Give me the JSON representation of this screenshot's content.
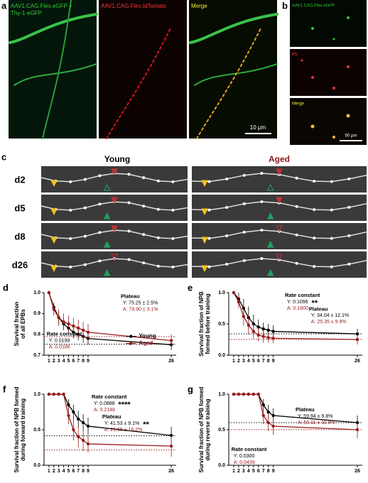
{
  "panel_a": {
    "label": "a",
    "green_label": [
      "AAV1.CAG.Flex.eGFP +",
      "Thy-1-eGFP"
    ],
    "red_label": "AAV1.CAG.Flex.tdTomato",
    "merge_label": "Merge",
    "scale_bar": "10 μm"
  },
  "panel_b": {
    "label": "b",
    "green_label": "AAV1.CAG.Flex.eGFP",
    "red_label": "PV",
    "merge_label": "Merge",
    "scale_bar": "50 μm"
  },
  "panel_c": {
    "label": "c",
    "columns": [
      "Young",
      "Aged"
    ],
    "rows": [
      "d2",
      "d5",
      "d8",
      "d26"
    ]
  },
  "chart_data": [
    {
      "type": "line",
      "label": "d",
      "y_label": [
        "Survival fraction",
        "of all EPBs"
      ],
      "x": [
        1,
        2,
        3,
        4,
        5,
        6,
        7,
        8,
        9,
        26
      ],
      "xlim": [
        0,
        27
      ],
      "xticks": [
        1,
        2,
        3,
        4,
        5,
        6,
        7,
        8,
        9,
        26
      ],
      "ylim": [
        0.7,
        1.0
      ],
      "yticks": [
        0.7,
        0.8,
        0.9,
        {
          "value": 1,
          "label": "1.0"
        }
      ],
      "legend": "lower right",
      "series": [
        {
          "name": "Young",
          "color": "#000000",
          "values": [
            1.0,
            0.93,
            0.88,
            0.85,
            0.83,
            0.81,
            0.8,
            0.79,
            0.78,
            0.75
          ],
          "errors": [
            0,
            0.02,
            0.03,
            0.03,
            0.03,
            0.03,
            0.03,
            0.03,
            0.03,
            0.025
          ],
          "plateau": 0.7525
        },
        {
          "name": "Aged",
          "color": "#9b1c1c",
          "values": [
            1.0,
            0.92,
            0.88,
            0.86,
            0.85,
            0.84,
            0.83,
            0.82,
            0.81,
            0.77
          ],
          "errors": [
            0,
            0.03,
            0.04,
            0.04,
            0.04,
            0.04,
            0.04,
            0.04,
            0.04,
            0.03
          ],
          "plateau": 0.789
        }
      ],
      "plateau_text": {
        "title": "Plateau",
        "young": "Y: 75.25 ± 2.5%",
        "aged": "A: 78.90 ± 3.1%"
      },
      "rate_text": {
        "title": "Rate constant",
        "young": "Y: 0.0199",
        "aged": "A: 0.0186"
      }
    },
    {
      "type": "line",
      "label": "e",
      "y_label": [
        "Survival fraction of NPB",
        "formed before training"
      ],
      "x": [
        1,
        2,
        3,
        4,
        5,
        6,
        7,
        8,
        9,
        26
      ],
      "xlim": [
        0,
        27
      ],
      "xticks": [
        1,
        2,
        3,
        4,
        5,
        6,
        7,
        8,
        9,
        26
      ],
      "ylim": [
        0,
        1
      ],
      "yticks": [
        {
          "value": 0,
          "label": "0.0"
        },
        0.5,
        {
          "value": 1,
          "label": "1.0"
        }
      ],
      "series": [
        {
          "color": "#000000",
          "values": [
            1.0,
            0.9,
            0.75,
            0.6,
            0.5,
            0.45,
            0.42,
            0.4,
            0.38,
            0.34
          ],
          "errors": [
            0,
            0.1,
            0.15,
            0.18,
            0.15,
            0.12,
            0.1,
            0.1,
            0.1,
            0.08
          ],
          "plateau": 0.3404
        },
        {
          "color": "#9b1c1c",
          "values": [
            1.0,
            0.85,
            0.62,
            0.48,
            0.38,
            0.32,
            0.3,
            0.28,
            0.27,
            0.25
          ],
          "errors": [
            0,
            0.1,
            0.15,
            0.15,
            0.12,
            0.1,
            0.1,
            0.08,
            0.08,
            0.08
          ],
          "plateau": 0.2535
        }
      ],
      "rate_text": {
        "title": "Rate constant",
        "young": "Y: 0.1096",
        "aged": "A: 0.1600",
        "significance": "**"
      },
      "plateau_text": {
        "title": "Plateau",
        "young": "Y: 34.04 ± 12.1%",
        "aged": "A: 25.35 ± 9.9%"
      }
    },
    {
      "type": "line",
      "label": "f",
      "y_label": [
        "Survival fraction of NPB formed",
        "during forward training"
      ],
      "x": [
        1,
        2,
        3,
        4,
        5,
        6,
        7,
        8,
        9,
        26
      ],
      "xlim": [
        0,
        27
      ],
      "xticks": [
        1,
        2,
        3,
        4,
        5,
        6,
        7,
        8,
        9,
        26
      ],
      "ylim": [
        0,
        1
      ],
      "yticks": [
        {
          "value": 0,
          "label": "0.0"
        },
        0.5,
        {
          "value": 1,
          "label": "1.0"
        }
      ],
      "series": [
        {
          "color": "#000000",
          "values": [
            1.0,
            1.0,
            1.0,
            1.0,
            0.85,
            0.75,
            0.65,
            0.6,
            0.55,
            0.42
          ],
          "errors": [
            0,
            0,
            0,
            0,
            0.08,
            0.1,
            0.12,
            0.12,
            0.12,
            0.12
          ],
          "plateau": 0.4153
        },
        {
          "color": "#9b1c1c",
          "values": [
            1.0,
            1.0,
            1.0,
            1.0,
            0.7,
            0.5,
            0.4,
            0.35,
            0.3,
            0.27
          ],
          "errors": [
            0,
            0,
            0,
            0,
            0.12,
            0.15,
            0.15,
            0.15,
            0.12,
            0.15
          ],
          "plateau": 0.2155
        }
      ],
      "rate_text": {
        "title": "Rate constant",
        "young": "Y: 0.0888",
        "aged": "A: 0.2148",
        "significance": "****"
      },
      "plateau_text": {
        "title": "Plateau",
        "young": "Y: 41.53 ± 9.1%",
        "aged": "A: 21.55 ± 16.2%",
        "significance": "**"
      }
    },
    {
      "type": "line",
      "label": "g",
      "y_label": [
        "Survival fraction of NPB formed",
        "during reverse training"
      ],
      "x": [
        1,
        2,
        3,
        4,
        5,
        6,
        7,
        8,
        9,
        26
      ],
      "xlim": [
        0,
        27
      ],
      "xticks": [
        1,
        2,
        3,
        4,
        5,
        6,
        7,
        8,
        9,
        26
      ],
      "ylim": [
        0,
        1
      ],
      "yticks": [
        {
          "value": 0,
          "label": "0.0"
        },
        0.5,
        {
          "value": 1,
          "label": "1.0"
        }
      ],
      "series": [
        {
          "color": "#000000",
          "values": [
            1.0,
            1.0,
            1.0,
            1.0,
            1.0,
            1.0,
            0.85,
            0.75,
            0.7,
            0.6
          ],
          "errors": [
            0,
            0,
            0,
            0,
            0,
            0,
            0.08,
            0.1,
            0.1,
            0.1
          ],
          "plateau": 0.5994
        },
        {
          "color": "#9b1c1c",
          "values": [
            1.0,
            1.0,
            1.0,
            1.0,
            1.0,
            1.0,
            0.7,
            0.6,
            0.55,
            0.5
          ],
          "errors": [
            0,
            0,
            0,
            0,
            0,
            0,
            0.12,
            0.12,
            0.12,
            0.12
          ],
          "plateau": 0.5011
        }
      ],
      "plateau_text": {
        "title": "Plateau",
        "young": "Y: 59.94 ± 9.8%",
        "aged": "A: 50.11 ± 11.9%"
      },
      "rate_text": {
        "title": "Rate constant",
        "young": "Y: 0.0300",
        "aged": "A: 0.0439"
      }
    }
  ]
}
